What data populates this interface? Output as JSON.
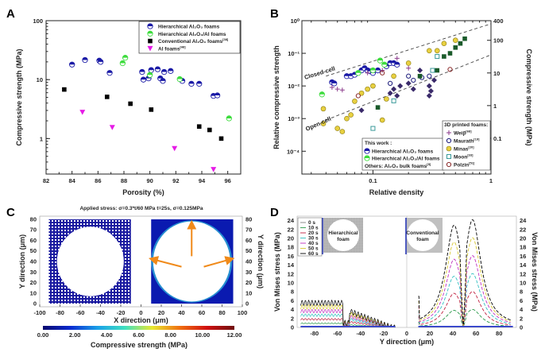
{
  "panels": {
    "A": {
      "letter": "A"
    },
    "B": {
      "letter": "B"
    },
    "C": {
      "letter": "C"
    },
    "D": {
      "letter": "D"
    }
  },
  "chart_data": [
    {
      "id": "A",
      "type": "scatter",
      "title": "",
      "xlabel": "Porosity (%)",
      "ylabel": "Compressive strength (MPa)",
      "xlim": [
        82,
        97
      ],
      "ylim": [
        0.25,
        100
      ],
      "yscale": "log",
      "xticks": [
        82,
        84,
        86,
        88,
        90,
        92,
        94,
        96
      ],
      "xtick_labels": [
        "82",
        "84",
        "86",
        "88",
        "90",
        "92",
        "94",
        "96"
      ],
      "yticks": [
        1,
        10,
        100
      ],
      "ytick_labels": [
        "1",
        "10",
        "100"
      ],
      "legend_position": "top-right",
      "series": [
        {
          "name": "Hierarchical Al2O3 foams",
          "legend_label": "Hierarchical Al₂O₃ foams",
          "marker": "half-circle",
          "color": "#1a1aa6",
          "points": [
            [
              84.0,
              18
            ],
            [
              85.0,
              21.5
            ],
            [
              86.1,
              21
            ],
            [
              86.2,
              20
            ],
            [
              86.9,
              13
            ],
            [
              89.4,
              13.5
            ],
            [
              89.5,
              10
            ],
            [
              89.9,
              10.5
            ],
            [
              90.1,
              14.5
            ],
            [
              90.6,
              15
            ],
            [
              90.8,
              10.5
            ],
            [
              91.0,
              9.5
            ],
            [
              91.1,
              13.5
            ],
            [
              91.6,
              14
            ],
            [
              92.5,
              9.5
            ],
            [
              93.2,
              8.5
            ],
            [
              93.8,
              8.5
            ],
            [
              94.9,
              5.3
            ],
            [
              95.2,
              5.4
            ]
          ]
        },
        {
          "name": "Hierarchical Al2O3/Al foams",
          "legend_label": "Hierarchical Al₂O₃/Al foams",
          "marker": "half-circle",
          "color": "#3ddc3d",
          "points": [
            [
              87.9,
              19
            ],
            [
              88.1,
              23.5
            ],
            [
              90.0,
              12
            ],
            [
              92.3,
              10.2
            ],
            [
              96.1,
              2.2
            ]
          ]
        },
        {
          "name": "Conventional Al2O3 foams",
          "legend_label": "Conventional Al₂O₃ foams",
          "legend_ref": "[38]",
          "marker": "square",
          "color": "#000000",
          "points": [
            [
              83.4,
              6.8
            ],
            [
              86.7,
              5.1
            ],
            [
              88.5,
              3.9
            ],
            [
              90.1,
              3.1
            ],
            [
              93.8,
              1.6
            ],
            [
              94.6,
              1.4
            ],
            [
              95.5,
              1.0
            ]
          ]
        },
        {
          "name": "Al foams",
          "legend_label": "Al foams",
          "legend_ref": "[48]",
          "marker": "triangle-down",
          "color": "#e61be6",
          "points": [
            [
              84.8,
              2.8
            ],
            [
              87.1,
              1.55
            ],
            [
              91.9,
              0.68
            ],
            [
              94.9,
              0.3
            ]
          ]
        }
      ]
    },
    {
      "id": "B",
      "type": "scatter",
      "title": "",
      "xlabel": "Relative density",
      "ylabel": "Relative compressive strength",
      "ylabel_right": "Compressive strength (MPa)",
      "xscale": "log",
      "yscale": "log",
      "xlim": [
        0.025,
        1
      ],
      "ylim": [
        2e-05,
        1
      ],
      "xticks": [
        0.1,
        1
      ],
      "xtick_labels": [
        "0.1",
        "1"
      ],
      "yticks": [
        0.0001,
        0.001,
        0.01,
        0.1,
        1
      ],
      "ytick_labels": [
        "10⁻⁴",
        "10⁻³",
        "10⁻²",
        "10⁻¹",
        "10⁰"
      ],
      "yticks_right": [
        0.1,
        1,
        10,
        100,
        400
      ],
      "ytick_labels_right": [
        "0.1",
        "1",
        "10",
        "100",
        "400"
      ],
      "annotations": [
        "Closed-cell",
        "Open-cell"
      ],
      "guide_lines": [
        {
          "name": "Closed-cell",
          "points": [
            [
              0.04,
              0.02
            ],
            [
              1,
              0.8
            ]
          ]
        },
        {
          "name": "Open-cell",
          "points": [
            [
              0.04,
              0.0009
            ],
            [
              1,
              0.09
            ]
          ]
        }
      ],
      "legend_groups": [
        {
          "title": "This work :",
          "entries": [
            "Hierarchical Al₂O₃ foams",
            "Hierarchical Al₂O₃/Al foams"
          ],
          "footer": "Others: Al₂O₃ bulk foams",
          "footer_ref": "[8]",
          "position": "bottom-center"
        },
        {
          "title": "3D printed foams:",
          "entries": [
            "Weiβ",
            "Maurath",
            "Minas",
            "Moon",
            "Polzin"
          ],
          "refs": [
            "[68]",
            "[19]",
            "[20]",
            "[33]",
            "[51]"
          ],
          "position": "bottom-right"
        }
      ],
      "series": [
        {
          "name": "Hierarchical Al2O3 foams",
          "marker": "half-circle",
          "color": "#1a1aa6",
          "points": [
            [
              0.045,
              0.013
            ],
            [
              0.047,
              0.012
            ],
            [
              0.06,
              0.02
            ],
            [
              0.065,
              0.02
            ],
            [
              0.07,
              0.022
            ],
            [
              0.08,
              0.03
            ],
            [
              0.085,
              0.035
            ],
            [
              0.09,
              0.03
            ],
            [
              0.095,
              0.028
            ],
            [
              0.1,
              0.025
            ],
            [
              0.11,
              0.03
            ],
            [
              0.13,
              0.04
            ],
            [
              0.14,
              0.05
            ],
            [
              0.15,
              0.05
            ],
            [
              0.16,
              0.045
            ]
          ]
        },
        {
          "name": "Hierarchical Al2O3/Al foams",
          "marker": "half-circle",
          "color": "#3ddc3d",
          "points": [
            [
              0.037,
              0.0055
            ],
            [
              0.075,
              0.025
            ],
            [
              0.1,
              0.03
            ],
            [
              0.115,
              0.06
            ],
            [
              0.125,
              0.045
            ]
          ]
        },
        {
          "name": "Al2O3 bulk foams",
          "marker": "diamond",
          "color": "#3a2a6a",
          "points": [
            [
              0.08,
              0.0018
            ],
            [
              0.14,
              0.006
            ],
            [
              0.15,
              0.008
            ],
            [
              0.16,
              0.005
            ],
            [
              0.17,
              0.01
            ],
            [
              0.2,
              0.012
            ],
            [
              0.22,
              0.008
            ],
            [
              0.25,
              0.03
            ],
            [
              0.3,
              0.01
            ],
            [
              0.3,
              0.005
            ],
            [
              0.31,
              0.007
            ],
            [
              0.33,
              0.015
            ]
          ]
        },
        {
          "name": "Weiβ",
          "marker": "plus",
          "color": "#8b3a8b",
          "points": [
            [
              0.045,
              0.009
            ],
            [
              0.05,
              0.008
            ],
            [
              0.055,
              0.0075
            ],
            [
              0.09,
              0.025
            ],
            [
              0.12,
              0.03
            ],
            [
              0.16,
              0.07
            ],
            [
              0.2,
              0.035
            ]
          ]
        },
        {
          "name": "Maurath",
          "marker": "open-circle",
          "color": "#1a1a7a",
          "points": [
            [
              0.14,
              0.012
            ],
            [
              0.2,
              0.02
            ],
            [
              0.22,
              0.015
            ],
            [
              0.26,
              0.018
            ],
            [
              0.3,
              0.02
            ]
          ]
        },
        {
          "name": "Minas",
          "marker": "open-diamond",
          "color": "#b8a020",
          "points": [
            [
              0.038,
              0.002
            ],
            [
              0.038,
              0.0007
            ],
            [
              0.05,
              0.0005
            ],
            [
              0.055,
              0.0004
            ],
            [
              0.06,
              0.001
            ],
            [
              0.065,
              0.0013
            ],
            [
              0.07,
              0.0034
            ],
            [
              0.08,
              0.006
            ],
            [
              0.09,
              0.008
            ],
            [
              0.1,
              0.01
            ],
            [
              0.12,
              0.0009
            ],
            [
              0.13,
              0.004
            ],
            [
              0.15,
              0.02
            ],
            [
              0.2,
              0.05
            ],
            [
              0.3,
              0.12
            ],
            [
              0.35,
              0.12
            ],
            [
              0.4,
              0.2
            ],
            [
              0.5,
              0.25
            ]
          ]
        },
        {
          "name": "Moon",
          "marker": "open-square",
          "color": "#3a9a9a",
          "points": [
            [
              0.1,
              0.0005
            ],
            [
              0.15,
              0.0035
            ],
            [
              0.35,
              0.08
            ],
            [
              0.32,
              0.03
            ]
          ]
        },
        {
          "name": "Polzin",
          "marker": "open-circle",
          "color": "#8b2a2a",
          "points": [
            [
              0.075,
              0.005
            ],
            [
              0.12,
              0.025
            ],
            [
              0.45,
              0.032
            ]
          ]
        },
        {
          "name": "Dense squares",
          "marker": "square",
          "color": "#1a5a2a",
          "points": [
            [
              0.11,
              0.0022
            ],
            [
              0.25,
              0.02
            ],
            [
              0.35,
              0.03
            ],
            [
              0.4,
              0.08
            ],
            [
              0.45,
              0.1
            ],
            [
              0.5,
              0.15
            ],
            [
              0.55,
              0.2
            ],
            [
              0.6,
              0.28
            ]
          ]
        }
      ]
    },
    {
      "id": "C",
      "type": "heatmap",
      "title": "Applied stress: σ=0.3*t/60 MPa    t=25s, σ=0.125MPa",
      "xlabel": "X direction (μm)",
      "ylabel": "Y direction (μm)",
      "ylabel_right": "Y direction (μm)",
      "xlim": [
        -100,
        100
      ],
      "ylim": [
        -3,
        83
      ],
      "xticks": [
        -100,
        -80,
        -60,
        -40,
        -20,
        0,
        20,
        40,
        60,
        80,
        100
      ],
      "xtick_labels": [
        "-100",
        "-80",
        "-60",
        "-40",
        "-20",
        "0",
        "20",
        "40",
        "60",
        "80",
        "100"
      ],
      "yticks": [
        0,
        10,
        20,
        30,
        40,
        50,
        60,
        70,
        80
      ],
      "ytick_labels": [
        "0",
        "10",
        "20",
        "30",
        "40",
        "50",
        "60",
        "70",
        "80"
      ],
      "colorbar": {
        "label": "Compressive strength (MPa)",
        "range": [
          0,
          12
        ],
        "ticks": [
          0,
          2,
          4,
          6,
          8,
          10,
          12
        ],
        "tick_labels": [
          "0.00",
          "2.00",
          "4.00",
          "6.00",
          "8.00",
          "10.00",
          "12.00"
        ],
        "colors": [
          "#0a0a6e",
          "#0a2ad0",
          "#1aa0e8",
          "#40e0c0",
          "#e8e830",
          "#f07010",
          "#d01010",
          "#701010"
        ]
      },
      "regions": [
        {
          "name": "hierarchical-foam",
          "x_range": [
            -91,
            -10
          ],
          "y_range": [
            0,
            80
          ],
          "hole_center": [
            -50,
            40
          ],
          "hole_radius": 33
        },
        {
          "name": "conventional-foam",
          "x_range": [
            10,
            91
          ],
          "y_range": [
            0,
            80
          ],
          "hole_center": [
            50,
            40
          ],
          "hole_radius": 38
        }
      ],
      "arrows": [
        {
          "from": [
            50,
            45
          ],
          "to": [
            50,
            75
          ]
        },
        {
          "from": [
            40,
            35
          ],
          "to": [
            12,
            42
          ]
        },
        {
          "from": [
            62,
            35
          ],
          "to": [
            88,
            42
          ]
        }
      ]
    },
    {
      "id": "D",
      "type": "line",
      "title": "",
      "xlabel": "Y direction (μm)",
      "ylabel": "Von Mises stress (MPa)",
      "ylabel_right": "Von Mises stress (MPa)",
      "xlim": [
        -95,
        95
      ],
      "ylim": [
        0,
        25
      ],
      "xticks": [
        -80,
        -60,
        -40,
        -20,
        0,
        20,
        40,
        60,
        80
      ],
      "xtick_labels": [
        "-80",
        "-60",
        "-40",
        "-20",
        "0",
        "20",
        "40",
        "60",
        "80"
      ],
      "yticks": [
        0,
        2,
        4,
        6,
        8,
        10,
        12,
        14,
        16,
        18,
        20,
        22,
        24
      ],
      "ytick_labels": [
        "0",
        "2",
        "4",
        "6",
        "8",
        "10",
        "12",
        "14",
        "16",
        "18",
        "20",
        "22",
        "24"
      ],
      "legend_position": "top-left",
      "insets": [
        "Hierarchical foam",
        "Conventional foam"
      ],
      "series": [
        {
          "name": "0 s",
          "color": "#808080",
          "scale": 0.0
        },
        {
          "name": "10 s",
          "color": "#2a9a4a",
          "scale": 1.0
        },
        {
          "name": "20 s",
          "color": "#c02040",
          "scale": 2.0
        },
        {
          "name": "30 s",
          "color": "#30c0c0",
          "scale": 3.0
        },
        {
          "name": "40 s",
          "color": "#c030c0",
          "scale": 4.0
        },
        {
          "name": "50 s",
          "color": "#d8c830",
          "scale": 5.0
        },
        {
          "name": "60 s",
          "color": "#000000",
          "scale": 6.0
        }
      ],
      "conventional_peaks_60s": [
        {
          "x": 41,
          "y": 23
        },
        {
          "x": 57,
          "y": 24.2
        }
      ],
      "hierarchical_max_60s": 6.8
    }
  ]
}
